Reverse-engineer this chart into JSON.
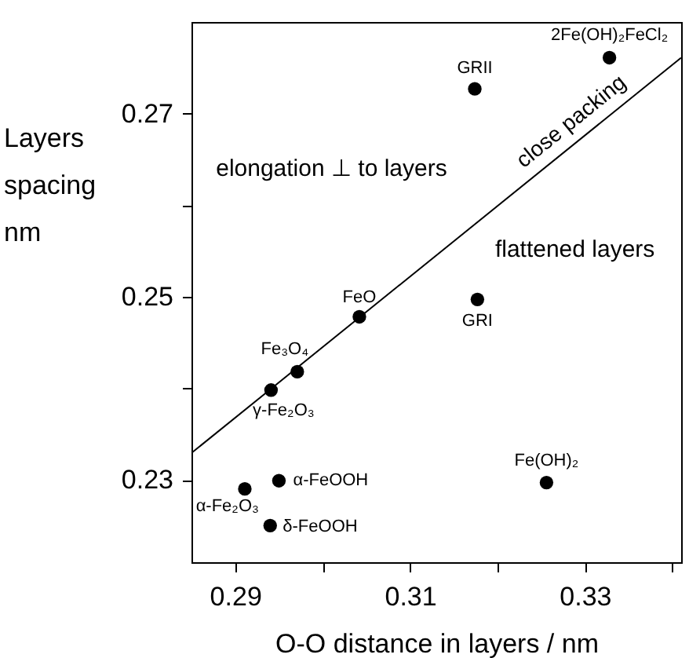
{
  "chart_data": {
    "type": "scatter",
    "xlabel": "O-O distance in layers  /  nm",
    "ylabel": "Layers spacing nm",
    "xlim": [
      0.285,
      0.341
    ],
    "ylim": [
      0.221,
      0.28
    ],
    "xticks": [
      0.29,
      {
        "value": 0.3,
        "label": null
      },
      0.31,
      {
        "value": 0.32,
        "label": null
      },
      0.33,
      {
        "value": 0.34,
        "label": null
      }
    ],
    "yticks": [
      0.23,
      {
        "value": 0.24,
        "label": null
      },
      0.25,
      {
        "value": 0.26,
        "label": null
      },
      0.27
    ],
    "marker": "circle",
    "annotations": [
      "elongation ⊥  to layers",
      "flattened layers"
    ],
    "series": [
      {
        "name": "GRII",
        "color": "#000000",
        "x": [
          0.3174
        ],
        "values": [
          0.2727
        ]
      },
      {
        "name": "2Fe(OH)₂FeCl₂",
        "color": "#000000",
        "x": [
          0.3328
        ],
        "values": [
          0.2761
        ]
      },
      {
        "name": "FeO",
        "color": "#000000",
        "x": [
          0.3042
        ],
        "values": [
          0.2478
        ]
      },
      {
        "name": "GRI",
        "color": "#000000",
        "x": [
          0.3177
        ],
        "values": [
          0.2497
        ]
      },
      {
        "name": "Fe₃O₄",
        "color": "#000000",
        "x": [
          0.2971
        ],
        "values": [
          0.2418
        ]
      },
      {
        "name": "γ-Fe₂O₃",
        "color": "#000000",
        "x": [
          0.2941
        ],
        "values": [
          0.2398
        ]
      },
      {
        "name": "α-FeOOH",
        "color": "#000000",
        "x": [
          0.295
        ],
        "values": [
          0.2299
        ]
      },
      {
        "name": "α-Fe₂O₃",
        "color": "#000000",
        "x": [
          0.2911
        ],
        "values": [
          0.229
        ]
      },
      {
        "name": "δ-FeOOH",
        "color": "#000000",
        "x": [
          0.294
        ],
        "values": [
          0.225
        ]
      },
      {
        "name": "Fe(OH)₂",
        "color": "#000000",
        "x": [
          0.3256
        ],
        "values": [
          0.2297
        ]
      },
      {
        "type": "line",
        "name": "close packing",
        "marker": "none",
        "color": "#000000",
        "x": [
          0.2851,
          0.341
        ],
        "values": [
          0.233,
          0.2761
        ]
      }
    ]
  }
}
